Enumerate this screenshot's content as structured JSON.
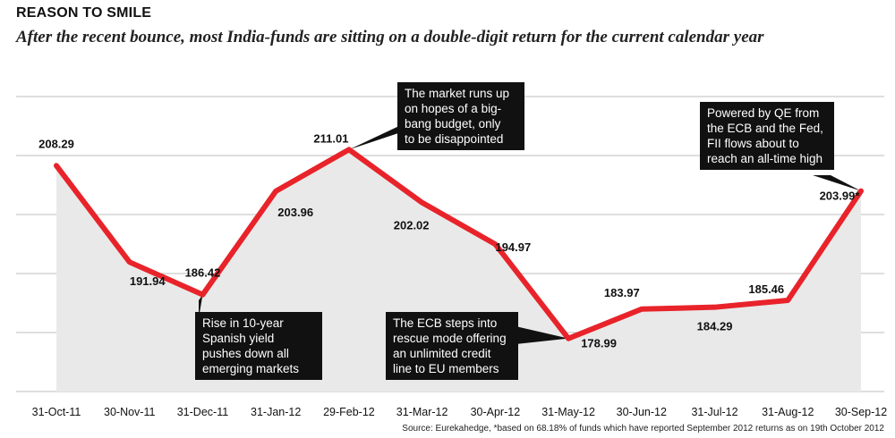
{
  "title": "REASON TO SMILE",
  "subtitle": "After the recent bounce, most India-funds are sitting on a double-digit return for the current calendar year",
  "source": "Source: Eurekahedge, *based on 68.18% of funds which have reported September 2012 returns as on 19th October 2012",
  "colors": {
    "line": "#e8232a",
    "area": "#e9e9e9",
    "grid": "#bdbdbd",
    "callout": "#111111"
  },
  "chart_data": {
    "type": "area",
    "title": "REASON TO SMILE",
    "categories": [
      "31-Oct-11",
      "30-Nov-11",
      "31-Dec-11",
      "31-Jan-12",
      "29-Feb-12",
      "31-Mar-12",
      "30-Apr-12",
      "31-May-12",
      "30-Jun-12",
      "31-Jul-12",
      "31-Aug-12",
      "30-Sep-12"
    ],
    "values": [
      208.29,
      191.94,
      186.42,
      203.96,
      211.01,
      202.02,
      194.97,
      178.99,
      183.97,
      184.29,
      185.46,
      203.99
    ],
    "data_labels": [
      "208.29",
      "191.94",
      "186.42",
      "203.96",
      "211.01",
      "202.02",
      "194.97",
      "178.99",
      "183.97",
      "184.29",
      "185.46",
      "203.99*"
    ],
    "ylim": [
      170,
      220
    ],
    "grid": true,
    "annotations": [
      {
        "point": "29-Feb-12",
        "lines": [
          "The market runs up",
          "on hopes of a big-",
          "bang budget, only",
          "to be disappointed"
        ]
      },
      {
        "point": "30-Sep-12",
        "lines": [
          "Powered by QE from",
          "the ECB and the Fed,",
          "FII flows about to",
          "reach an all-time high"
        ]
      },
      {
        "point": "31-Dec-11",
        "lines": [
          "Rise in 10-year",
          "Spanish yield",
          "pushes down all",
          "emerging markets"
        ]
      },
      {
        "point": "31-May-12",
        "lines": [
          "The ECB steps into",
          "rescue mode offering",
          "an unlimited credit",
          "line to EU members"
        ]
      }
    ]
  }
}
